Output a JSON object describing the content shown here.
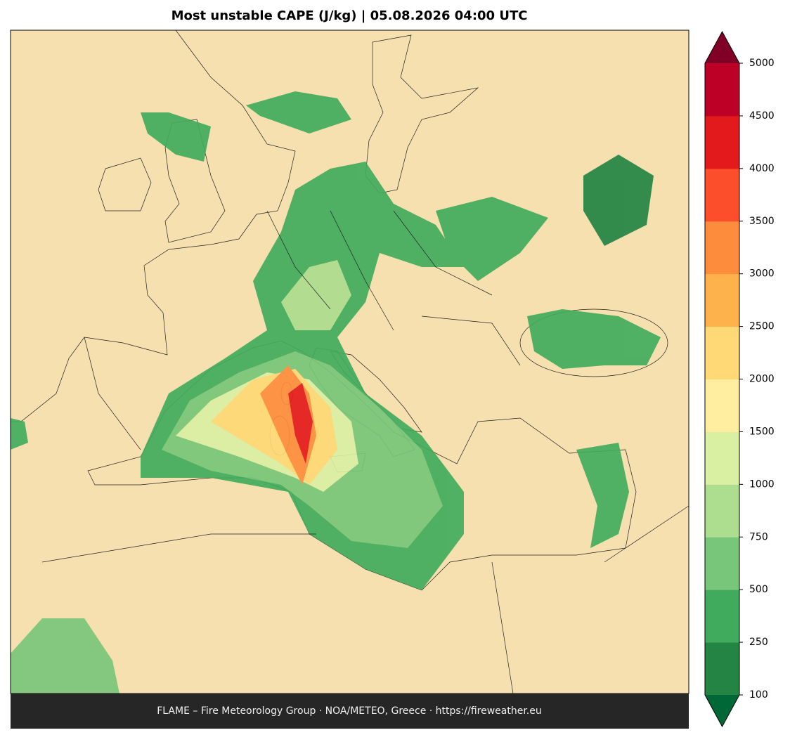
{
  "title": "Most unstable CAPE (J/kg)  |  05.08.2026 04:00 UTC",
  "footer": "FLAME – Fire Meteorology Group · NOA/METEO, Greece · https://fireweather.eu",
  "colorbar": {
    "levels": [
      100,
      250,
      500,
      750,
      1000,
      1500,
      2000,
      2500,
      3000,
      3500,
      4000,
      4500,
      5000
    ],
    "colors": [
      "#238443",
      "#41ab5d",
      "#78c679",
      "#addd8e",
      "#d9f0a3",
      "#ffeda0",
      "#fed976",
      "#feb24c",
      "#fd8d3c",
      "#fc4e2a",
      "#e31a1c",
      "#bd0026"
    ],
    "under_color": "#006837",
    "over_color": "#800026"
  }
}
